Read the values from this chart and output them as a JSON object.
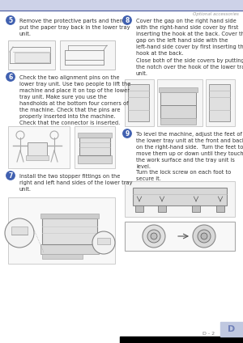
{
  "page_bg": "#ffffff",
  "header_bar_color": "#cdd2e8",
  "header_line_color": "#5060a0",
  "header_text": "Optional accessories",
  "header_text_color": "#999999",
  "footer_bar_color": "#000000",
  "footer_page_label": "D - 2",
  "footer_page_color": "#777777",
  "footer_tab_color": "#c0c8e0",
  "tab_letter": "D",
  "tab_color": "#7080b8",
  "tab_text_color": "#7080b8",
  "step5_num": "5",
  "step6_num": "6",
  "step7_num": "7",
  "step8_num": "8",
  "step9_num": "9",
  "step_circle_color": "#4060b0",
  "step5_text": "Remove the protective parts and then\nput the paper tray back in the lower tray\nunit.",
  "step6_text": "Check the two alignment pins on the\nlower tray unit. Use two people to lift the\nmachine and place it on top of the lower\ntray unit. Make sure you use the\nhandholds at the bottom four corners of\nthe machine. Check that the pins are\nproperly inserted into the machine.\nCheck that the connector is inserted.",
  "step7_text": "Install the two stopper fittings on the\nright and left hand sides of the lower tray\nunit.",
  "step8_text": "Cover the gap on the right hand side\nwith the right-hand side cover by first\ninserting the hook at the back. Cover the\ngap on the left hand side with the\nleft-hand side cover by first inserting the\nhook at the back.",
  "step8_text2": "Close both of the side covers by putting\nthe notch over the hook of the lower tray\nunit.",
  "step9_text": "To level the machine, adjust the feet of\nthe lower tray unit at the front and back\non the right-hand side.  Turn the feet to\nmove them up or down until they touch\nthe work surface and the tray unit is\nlevel.",
  "step9_text2": "Turn the lock screw on each foot to\nsecure it.",
  "body_text_color": "#333333",
  "body_text_size": 4.8,
  "figsize": [
    3.0,
    4.24
  ],
  "dpi": 100
}
